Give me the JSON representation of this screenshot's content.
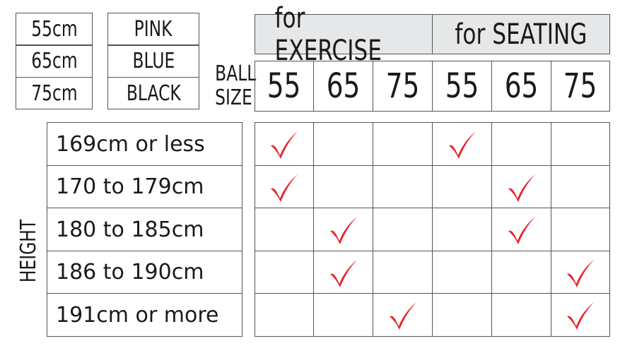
{
  "sizes": [
    "55cm",
    "65cm",
    "75cm"
  ],
  "colors": [
    "PINK",
    "BLUE",
    "BLACK"
  ],
  "ball_size_label": [
    "BALL",
    "SIZE"
  ],
  "groups": [
    "for EXERCISE",
    "for SEATING"
  ],
  "ball_sizes": [
    "55",
    "65",
    "75",
    "55",
    "65",
    "75"
  ],
  "height_label": "HEIGHT",
  "rows": [
    {
      "label": "169cm or less",
      "checks": [
        true,
        false,
        false,
        true,
        false,
        false
      ]
    },
    {
      "label": "170 to 179cm",
      "checks": [
        true,
        false,
        false,
        false,
        true,
        false
      ]
    },
    {
      "label": "180 to 185cm",
      "checks": [
        false,
        true,
        false,
        false,
        true,
        false
      ]
    },
    {
      "label": "186 to 190cm",
      "checks": [
        false,
        true,
        false,
        false,
        false,
        true
      ]
    },
    {
      "label": "191cm or more",
      "checks": [
        false,
        false,
        true,
        false,
        false,
        true
      ]
    }
  ],
  "check_color": "#e8202a",
  "header_bg": "#e6e7e8"
}
